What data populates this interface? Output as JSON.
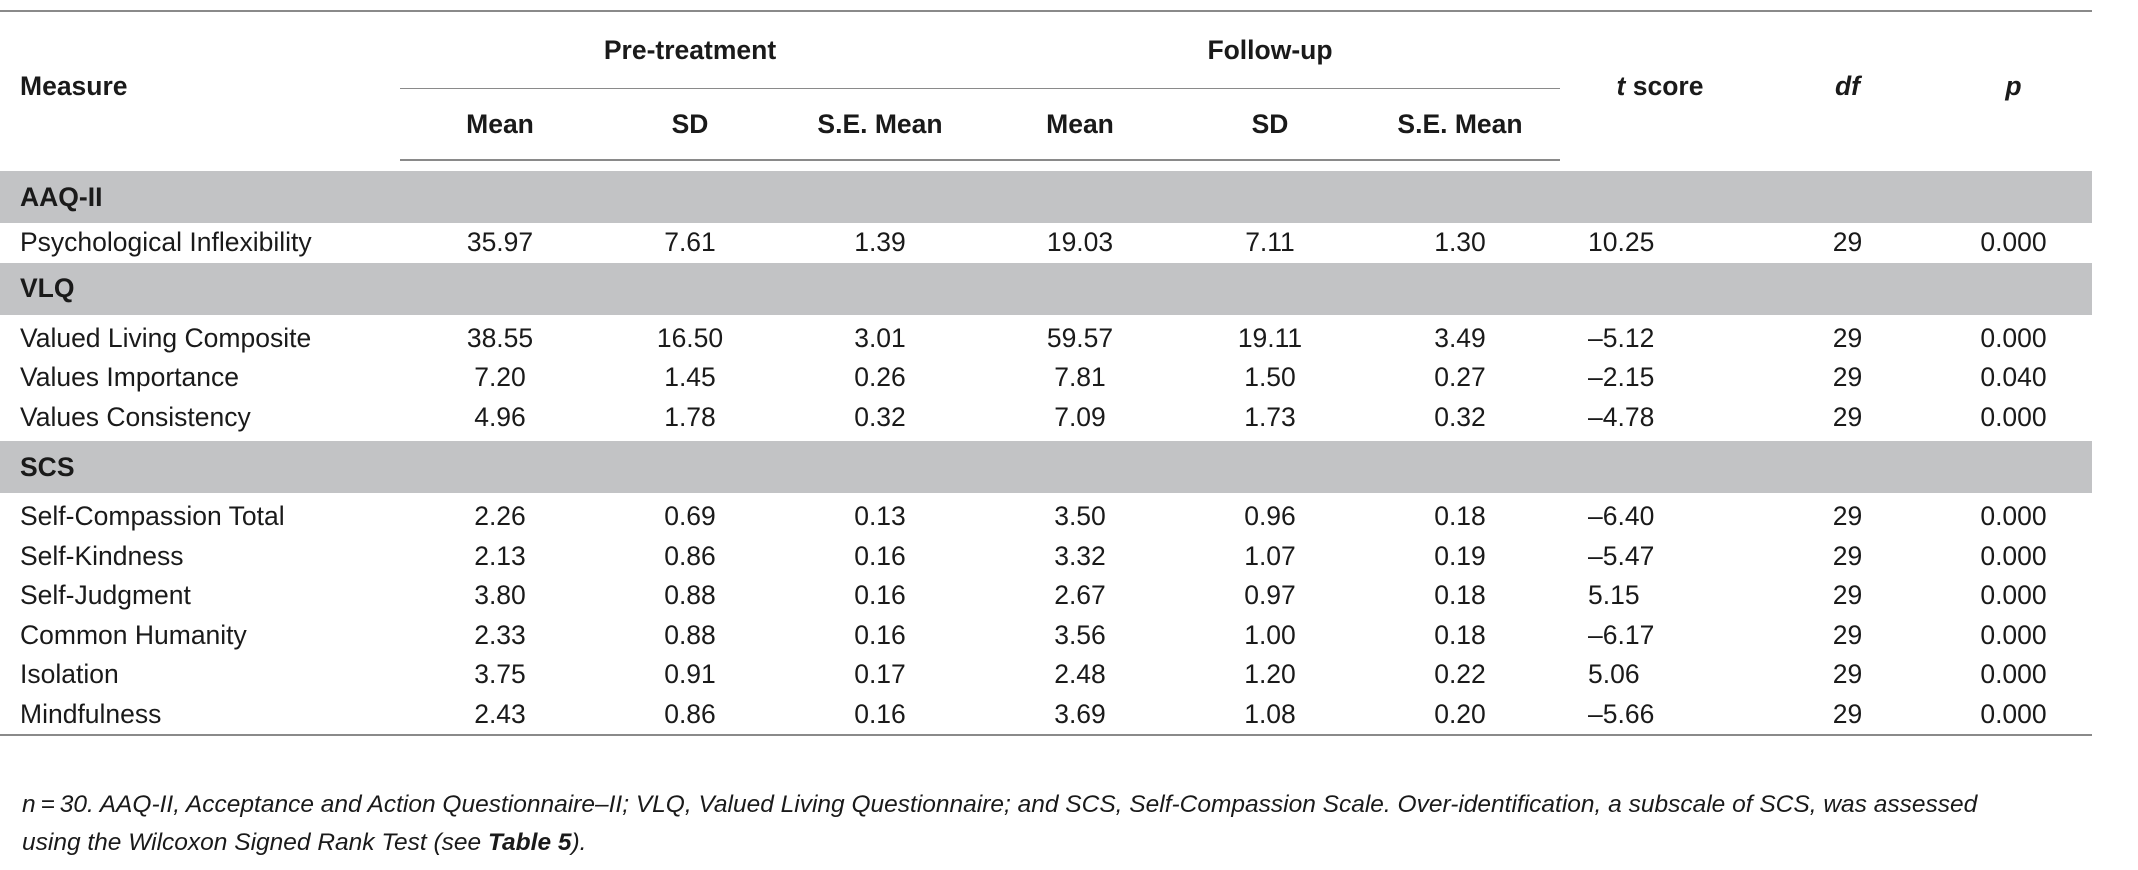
{
  "table": {
    "header": {
      "measure": "Measure",
      "pre_treatment": "Pre-treatment",
      "follow_up": "Follow-up",
      "t_score_italic": "t",
      "t_score_rest": " score",
      "df": "df",
      "p": "p",
      "mean": "Mean",
      "sd": "SD",
      "se_mean": "S.E. Mean"
    },
    "sections": [
      {
        "title": "AAQ-II",
        "rows": [
          {
            "label": "Psychological Inflexibility",
            "pre_mean": "35.97",
            "pre_sd": "7.61",
            "pre_se": "1.39",
            "fu_mean": "19.03",
            "fu_sd": "7.11",
            "fu_se": "1.30",
            "t": "10.25",
            "df": "29",
            "p": "0.000"
          }
        ]
      },
      {
        "title": "VLQ",
        "rows": [
          {
            "label": "Valued Living Composite",
            "pre_mean": "38.55",
            "pre_sd": "16.50",
            "pre_se": "3.01",
            "fu_mean": "59.57",
            "fu_sd": "19.11",
            "fu_se": "3.49",
            "t": "–5.12",
            "df": "29",
            "p": "0.000"
          },
          {
            "label": "Values Importance",
            "pre_mean": "7.20",
            "pre_sd": "1.45",
            "pre_se": "0.26",
            "fu_mean": "7.81",
            "fu_sd": "1.50",
            "fu_se": "0.27",
            "t": "–2.15",
            "df": "29",
            "p": "0.040"
          },
          {
            "label": "Values Consistency",
            "pre_mean": "4.96",
            "pre_sd": "1.78",
            "pre_se": "0.32",
            "fu_mean": "7.09",
            "fu_sd": "1.73",
            "fu_se": "0.32",
            "t": "–4.78",
            "df": "29",
            "p": "0.000"
          }
        ]
      },
      {
        "title": "SCS",
        "rows": [
          {
            "label": "Self-Compassion Total",
            "pre_mean": "2.26",
            "pre_sd": "0.69",
            "pre_se": "0.13",
            "fu_mean": "3.50",
            "fu_sd": "0.96",
            "fu_se": "0.18",
            "t": "–6.40",
            "df": "29",
            "p": "0.000"
          },
          {
            "label": "Self-Kindness",
            "pre_mean": "2.13",
            "pre_sd": "0.86",
            "pre_se": "0.16",
            "fu_mean": "3.32",
            "fu_sd": "1.07",
            "fu_se": "0.19",
            "t": "–5.47",
            "df": "29",
            "p": "0.000"
          },
          {
            "label": "Self-Judgment",
            "pre_mean": "3.80",
            "pre_sd": "0.88",
            "pre_se": "0.16",
            "fu_mean": "2.67",
            "fu_sd": "0.97",
            "fu_se": "0.18",
            "t": "5.15",
            "df": "29",
            "p": "0.000"
          },
          {
            "label": "Common Humanity",
            "pre_mean": "2.33",
            "pre_sd": "0.88",
            "pre_se": "0.16",
            "fu_mean": "3.56",
            "fu_sd": "1.00",
            "fu_se": "0.18",
            "t": "–6.17",
            "df": "29",
            "p": "0.000"
          },
          {
            "label": "Isolation",
            "pre_mean": "3.75",
            "pre_sd": "0.91",
            "pre_se": "0.17",
            "fu_mean": "2.48",
            "fu_sd": "1.20",
            "fu_se": "0.22",
            "t": "5.06",
            "df": "29",
            "p": "0.000"
          },
          {
            "label": "Mindfulness",
            "pre_mean": "2.43",
            "pre_sd": "0.86",
            "pre_se": "0.16",
            "fu_mean": "3.69",
            "fu_sd": "1.08",
            "fu_se": "0.20",
            "t": "–5.66",
            "df": "29",
            "p": "0.000"
          }
        ]
      }
    ]
  },
  "note": {
    "line1": "n = 30. AAQ-II, Acceptance and Action Questionnaire–II; VLQ, Valued Living Questionnaire; and SCS, Self-Compassion Scale. Over-identification, a subscale of SCS, was assessed",
    "line2_pre": "using the Wilcoxon Signed Rank Test (see ",
    "line2_bold": "Table 5",
    "line2_post": ")."
  }
}
